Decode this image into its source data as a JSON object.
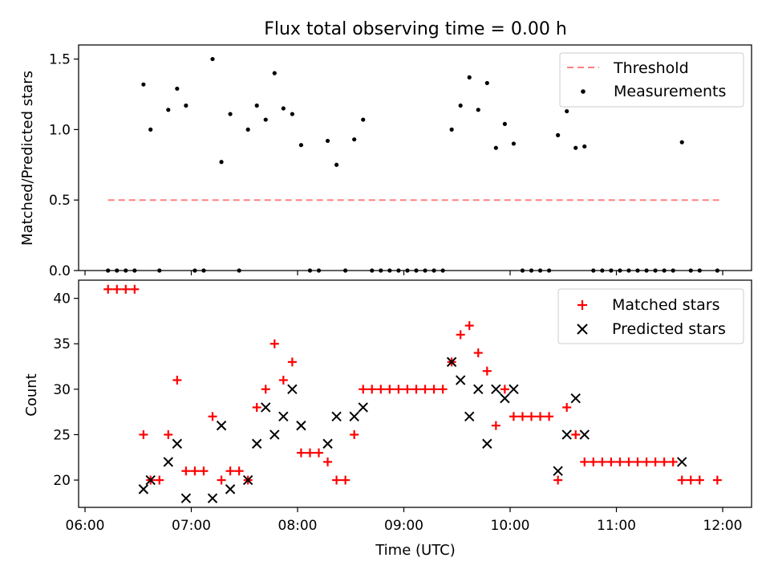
{
  "chart_data": [
    {
      "type": "scatter",
      "title": "Flux total observing time = 0.00 h",
      "ylabel": "Matched/Predicted stars",
      "xlabel": "",
      "xlim": [
        "06:00",
        "12:00"
      ],
      "ylim": [
        0,
        1.6
      ],
      "yticks": [
        0.0,
        0.5,
        1.0,
        1.5
      ],
      "ytick_labels": [
        "0.0",
        "0.5",
        "1.0",
        "1.5"
      ],
      "grid": false,
      "legend_position": "top-right",
      "threshold": {
        "name": "Threshold",
        "value": 0.5,
        "x_start": "06:13",
        "x_end": "11:58",
        "color": "#ff8080"
      },
      "series": [
        {
          "name": "Measurements",
          "color": "#000000",
          "points": [
            [
              "06:13",
              0
            ],
            [
              "06:18",
              0
            ],
            [
              "06:23",
              0
            ],
            [
              "06:28",
              0
            ],
            [
              "06:33",
              1.32
            ],
            [
              "06:37",
              1.0
            ],
            [
              "06:42",
              0
            ],
            [
              "06:47",
              1.14
            ],
            [
              "06:52",
              1.29
            ],
            [
              "06:57",
              1.17
            ],
            [
              "07:02",
              0
            ],
            [
              "07:07",
              0
            ],
            [
              "07:12",
              1.5
            ],
            [
              "07:17",
              0.77
            ],
            [
              "07:22",
              1.11
            ],
            [
              "07:27",
              0
            ],
            [
              "07:32",
              1.0
            ],
            [
              "07:37",
              1.17
            ],
            [
              "07:42",
              1.07
            ],
            [
              "07:47",
              1.4
            ],
            [
              "07:52",
              1.15
            ],
            [
              "07:57",
              1.11
            ],
            [
              "08:02",
              0.89
            ],
            [
              "08:07",
              0
            ],
            [
              "08:12",
              0
            ],
            [
              "08:17",
              0.92
            ],
            [
              "08:22",
              0.75
            ],
            [
              "08:27",
              0
            ],
            [
              "08:32",
              0.93
            ],
            [
              "08:37",
              1.07
            ],
            [
              "08:42",
              0
            ],
            [
              "08:47",
              0
            ],
            [
              "08:52",
              0
            ],
            [
              "08:57",
              0
            ],
            [
              "09:02",
              0
            ],
            [
              "09:07",
              0
            ],
            [
              "09:12",
              0
            ],
            [
              "09:17",
              0
            ],
            [
              "09:22",
              0
            ],
            [
              "09:27",
              1.0
            ],
            [
              "09:32",
              1.17
            ],
            [
              "09:37",
              1.37
            ],
            [
              "09:42",
              1.14
            ],
            [
              "09:47",
              1.33
            ],
            [
              "09:52",
              0.87
            ],
            [
              "09:57",
              1.04
            ],
            [
              "10:02",
              0.9
            ],
            [
              "10:07",
              0
            ],
            [
              "10:12",
              0
            ],
            [
              "10:17",
              0
            ],
            [
              "10:22",
              0
            ],
            [
              "10:27",
              0.96
            ],
            [
              "10:32",
              1.13
            ],
            [
              "10:37",
              0.87
            ],
            [
              "10:42",
              0.88
            ],
            [
              "10:47",
              0
            ],
            [
              "10:52",
              0
            ],
            [
              "10:57",
              0
            ],
            [
              "11:02",
              0
            ],
            [
              "11:07",
              0
            ],
            [
              "11:12",
              0
            ],
            [
              "11:17",
              0
            ],
            [
              "11:22",
              0
            ],
            [
              "11:27",
              0
            ],
            [
              "11:32",
              0
            ],
            [
              "11:37",
              0.91
            ],
            [
              "11:42",
              0
            ],
            [
              "11:47",
              0
            ],
            [
              "11:57",
              0
            ]
          ]
        }
      ]
    },
    {
      "type": "scatter",
      "title": "",
      "xlabel": "Time (UTC)",
      "ylabel": "Count",
      "xlim": [
        "06:00",
        "12:00"
      ],
      "ylim": [
        17,
        42
      ],
      "xticks": [
        "06:00",
        "07:00",
        "08:00",
        "09:00",
        "10:00",
        "11:00",
        "12:00"
      ],
      "yticks": [
        20,
        25,
        30,
        35,
        40
      ],
      "grid": false,
      "legend_position": "top-right",
      "series": [
        {
          "name": "Matched stars",
          "marker": "plus",
          "color": "#ff0000",
          "points": [
            [
              "06:13",
              41
            ],
            [
              "06:18",
              41
            ],
            [
              "06:23",
              41
            ],
            [
              "06:28",
              41
            ],
            [
              "06:33",
              25
            ],
            [
              "06:37",
              20
            ],
            [
              "06:42",
              20
            ],
            [
              "06:47",
              25
            ],
            [
              "06:52",
              31
            ],
            [
              "06:57",
              21
            ],
            [
              "07:02",
              21
            ],
            [
              "07:07",
              21
            ],
            [
              "07:12",
              27
            ],
            [
              "07:17",
              20
            ],
            [
              "07:22",
              21
            ],
            [
              "07:27",
              21
            ],
            [
              "07:32",
              20
            ],
            [
              "07:37",
              28
            ],
            [
              "07:42",
              30
            ],
            [
              "07:47",
              35
            ],
            [
              "07:52",
              31
            ],
            [
              "07:57",
              33
            ],
            [
              "08:02",
              23
            ],
            [
              "08:07",
              23
            ],
            [
              "08:12",
              23
            ],
            [
              "08:17",
              22
            ],
            [
              "08:22",
              20
            ],
            [
              "08:27",
              20
            ],
            [
              "08:32",
              25
            ],
            [
              "08:37",
              30
            ],
            [
              "08:42",
              30
            ],
            [
              "08:47",
              30
            ],
            [
              "08:52",
              30
            ],
            [
              "08:57",
              30
            ],
            [
              "09:02",
              30
            ],
            [
              "09:07",
              30
            ],
            [
              "09:12",
              30
            ],
            [
              "09:17",
              30
            ],
            [
              "09:22",
              30
            ],
            [
              "09:27",
              33
            ],
            [
              "09:32",
              36
            ],
            [
              "09:37",
              37
            ],
            [
              "09:42",
              34
            ],
            [
              "09:47",
              32
            ],
            [
              "09:52",
              26
            ],
            [
              "09:57",
              30
            ],
            [
              "10:02",
              27
            ],
            [
              "10:07",
              27
            ],
            [
              "10:12",
              27
            ],
            [
              "10:17",
              27
            ],
            [
              "10:22",
              27
            ],
            [
              "10:27",
              20
            ],
            [
              "10:32",
              28
            ],
            [
              "10:37",
              25
            ],
            [
              "10:42",
              22
            ],
            [
              "10:47",
              22
            ],
            [
              "10:52",
              22
            ],
            [
              "10:57",
              22
            ],
            [
              "11:02",
              22
            ],
            [
              "11:07",
              22
            ],
            [
              "11:12",
              22
            ],
            [
              "11:17",
              22
            ],
            [
              "11:22",
              22
            ],
            [
              "11:27",
              22
            ],
            [
              "11:32",
              22
            ],
            [
              "11:37",
              20
            ],
            [
              "11:42",
              20
            ],
            [
              "11:47",
              20
            ],
            [
              "11:57",
              20
            ]
          ]
        },
        {
          "name": "Predicted stars",
          "marker": "x",
          "color": "#000000",
          "points": [
            [
              "06:33",
              19
            ],
            [
              "06:37",
              20
            ],
            [
              "06:47",
              22
            ],
            [
              "06:52",
              24
            ],
            [
              "06:57",
              18
            ],
            [
              "07:12",
              18
            ],
            [
              "07:17",
              26
            ],
            [
              "07:22",
              19
            ],
            [
              "07:32",
              20
            ],
            [
              "07:37",
              24
            ],
            [
              "07:42",
              28
            ],
            [
              "07:47",
              25
            ],
            [
              "07:52",
              27
            ],
            [
              "07:57",
              30
            ],
            [
              "08:02",
              26
            ],
            [
              "08:17",
              24
            ],
            [
              "08:22",
              27
            ],
            [
              "08:32",
              27
            ],
            [
              "08:37",
              28
            ],
            [
              "09:27",
              33
            ],
            [
              "09:32",
              31
            ],
            [
              "09:37",
              27
            ],
            [
              "09:42",
              30
            ],
            [
              "09:47",
              24
            ],
            [
              "09:52",
              30
            ],
            [
              "09:57",
              29
            ],
            [
              "10:02",
              30
            ],
            [
              "10:27",
              21
            ],
            [
              "10:32",
              25
            ],
            [
              "10:37",
              29
            ],
            [
              "10:42",
              25
            ],
            [
              "11:37",
              22
            ]
          ]
        }
      ]
    }
  ]
}
